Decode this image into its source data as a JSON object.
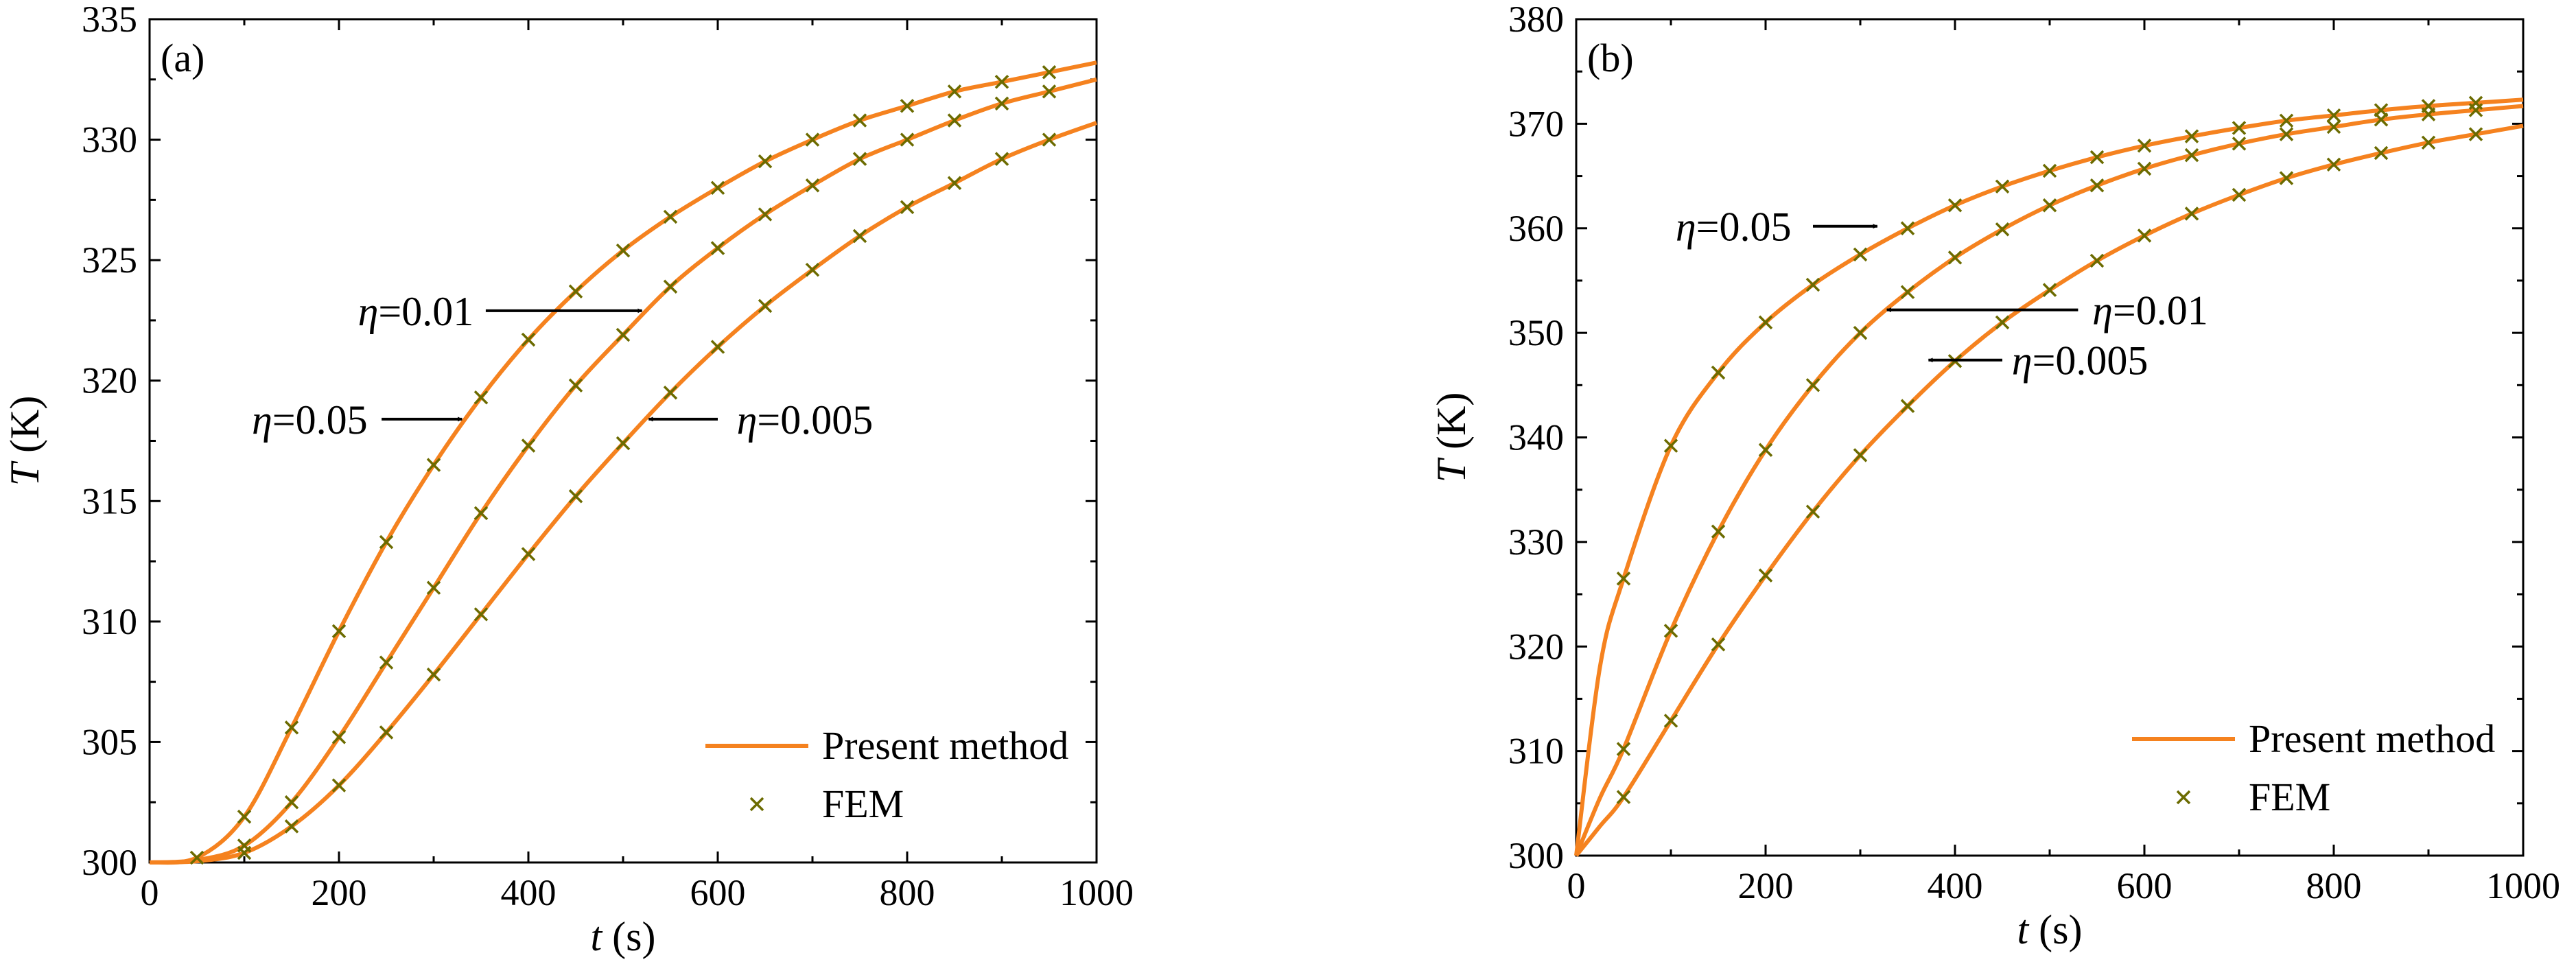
{
  "figure": {
    "legend": {
      "line_label": "Present method",
      "marker_label": "FEM",
      "marker_symbol": "×"
    },
    "colors": {
      "line": "#f5821f",
      "marker": "#6b6b00",
      "axis": "#000000"
    }
  },
  "chart_data": [
    {
      "type": "line",
      "panel_label": "(a)",
      "xlabel": "t",
      "xlabel_unit": "(s)",
      "ylabel": "T",
      "ylabel_unit": "(K)",
      "xlim": [
        0,
        1000
      ],
      "ylim": [
        300,
        335
      ],
      "xticks": [
        0,
        200,
        400,
        600,
        800,
        1000
      ],
      "yticks": [
        300,
        305,
        310,
        315,
        320,
        325,
        330,
        335
      ],
      "legend_position": "bottom-right",
      "series": [
        {
          "name": "η=0.05",
          "x": [
            0,
            50,
            100,
            150,
            200,
            250,
            300,
            350,
            400,
            450,
            500,
            550,
            600,
            650,
            700,
            750,
            800,
            850,
            900,
            950,
            1000
          ],
          "values": [
            300,
            300.2,
            301.9,
            305.6,
            309.6,
            313.3,
            316.5,
            319.3,
            321.7,
            323.7,
            325.4,
            326.8,
            328.0,
            329.1,
            330.0,
            330.8,
            331.4,
            332.0,
            332.4,
            332.8,
            333.2
          ],
          "fem_x": [
            50,
            100,
            150,
            200,
            250,
            300,
            350,
            400,
            450,
            500,
            550,
            600,
            650,
            700,
            750,
            800,
            850,
            900,
            950
          ],
          "fem_values": [
            300.2,
            301.9,
            305.6,
            309.6,
            313.3,
            316.5,
            319.3,
            321.7,
            323.7,
            325.4,
            326.8,
            328.0,
            329.1,
            330.0,
            330.8,
            331.4,
            332.0,
            332.4,
            332.8
          ]
        },
        {
          "name": "η=0.01",
          "x": [
            0,
            50,
            100,
            150,
            200,
            250,
            300,
            350,
            400,
            450,
            500,
            550,
            600,
            650,
            700,
            750,
            800,
            850,
            900,
            950,
            1000
          ],
          "values": [
            300,
            300.1,
            300.7,
            302.5,
            305.2,
            308.3,
            311.4,
            314.5,
            317.3,
            319.8,
            321.9,
            323.9,
            325.5,
            326.9,
            328.1,
            329.2,
            330.0,
            330.8,
            331.5,
            332.0,
            332.5
          ],
          "fem_x": [
            100,
            150,
            200,
            250,
            300,
            350,
            400,
            450,
            500,
            550,
            600,
            650,
            700,
            750,
            800,
            850,
            900,
            950
          ],
          "fem_values": [
            300.7,
            302.5,
            305.2,
            308.3,
            311.4,
            314.5,
            317.3,
            319.8,
            321.9,
            323.9,
            325.5,
            326.9,
            328.1,
            329.2,
            330.0,
            330.8,
            331.5,
            332.0
          ]
        },
        {
          "name": "η=0.005",
          "x": [
            0,
            50,
            100,
            150,
            200,
            250,
            300,
            350,
            400,
            450,
            500,
            550,
            600,
            650,
            700,
            750,
            800,
            850,
            900,
            950,
            1000
          ],
          "values": [
            300,
            300.05,
            300.4,
            301.5,
            303.2,
            305.4,
            307.8,
            310.3,
            312.8,
            315.2,
            317.4,
            319.5,
            321.4,
            323.1,
            324.6,
            326.0,
            327.2,
            328.2,
            329.2,
            330.0,
            330.7
          ],
          "fem_x": [
            100,
            150,
            200,
            250,
            300,
            350,
            400,
            450,
            500,
            550,
            600,
            650,
            700,
            750,
            800,
            850,
            900,
            950
          ],
          "fem_values": [
            300.4,
            301.5,
            303.2,
            305.4,
            307.8,
            310.3,
            312.8,
            315.2,
            317.4,
            319.5,
            321.4,
            323.1,
            324.6,
            326.0,
            327.2,
            328.2,
            329.2,
            330.0
          ]
        }
      ],
      "annotations": [
        {
          "series": "η=0.01",
          "eta": "η",
          "value": "=0.01",
          "text_at": [
            220,
            322.9
          ],
          "arrow_from": [
            355,
            322.9
          ],
          "arrow_to": [
            520,
            322.9
          ]
        },
        {
          "series": "η=0.05",
          "eta": "η",
          "value": "=0.05",
          "text_at": [
            108,
            318.4
          ],
          "arrow_from": [
            245,
            318.4
          ],
          "arrow_to": [
            330,
            318.4
          ]
        },
        {
          "series": "η=0.005",
          "eta": "η",
          "value": "=0.005",
          "text_at": [
            620,
            318.4
          ],
          "arrow_from": [
            600,
            318.4
          ],
          "arrow_to": [
            527,
            318.4
          ]
        }
      ]
    },
    {
      "type": "line",
      "panel_label": "(b)",
      "xlabel": "t",
      "xlabel_unit": "(s)",
      "ylabel": "T",
      "ylabel_unit": "(K)",
      "xlim": [
        0,
        1000
      ],
      "ylim": [
        300,
        380
      ],
      "xticks": [
        0,
        200,
        400,
        600,
        800,
        1000
      ],
      "yticks": [
        300,
        310,
        320,
        330,
        340,
        350,
        360,
        370,
        380
      ],
      "legend_position": "bottom-right",
      "series": [
        {
          "name": "η=0.05",
          "x": [
            0,
            25,
            50,
            100,
            150,
            200,
            250,
            300,
            350,
            400,
            450,
            500,
            550,
            600,
            650,
            700,
            750,
            800,
            850,
            900,
            950,
            1000
          ],
          "values": [
            300,
            318,
            326.5,
            339.2,
            346.2,
            351.0,
            354.6,
            357.5,
            360.0,
            362.2,
            364.0,
            365.5,
            366.8,
            367.9,
            368.8,
            369.6,
            370.3,
            370.8,
            371.3,
            371.7,
            372.0,
            372.3
          ],
          "fem_x": [
            50,
            100,
            150,
            200,
            250,
            300,
            350,
            400,
            450,
            500,
            550,
            600,
            650,
            700,
            750,
            800,
            850,
            900,
            950
          ],
          "fem_values": [
            326.5,
            339.2,
            346.2,
            351.0,
            354.6,
            357.5,
            360.0,
            362.2,
            364.0,
            365.5,
            366.8,
            367.9,
            368.8,
            369.6,
            370.3,
            370.8,
            371.3,
            371.7,
            372.0
          ]
        },
        {
          "name": "η=0.01",
          "x": [
            0,
            25,
            50,
            100,
            150,
            200,
            250,
            300,
            350,
            400,
            450,
            500,
            550,
            600,
            650,
            700,
            750,
            800,
            850,
            900,
            950,
            1000
          ],
          "values": [
            300,
            305.5,
            310.2,
            321.5,
            331.0,
            338.8,
            345.0,
            350.0,
            353.9,
            357.2,
            359.9,
            362.2,
            364.1,
            365.7,
            367.0,
            368.1,
            369.0,
            369.7,
            370.4,
            370.9,
            371.3,
            371.7
          ],
          "fem_x": [
            50,
            100,
            150,
            200,
            250,
            300,
            350,
            400,
            450,
            500,
            550,
            600,
            650,
            700,
            750,
            800,
            850,
            900,
            950
          ],
          "fem_values": [
            310.2,
            321.5,
            331.0,
            338.8,
            345.0,
            350.0,
            353.9,
            357.2,
            359.9,
            362.2,
            364.1,
            365.7,
            367.0,
            368.1,
            369.0,
            369.7,
            370.4,
            370.9,
            371.3
          ]
        },
        {
          "name": "η=0.005",
          "x": [
            0,
            25,
            50,
            100,
            150,
            200,
            250,
            300,
            350,
            400,
            450,
            500,
            550,
            600,
            650,
            700,
            750,
            800,
            850,
            900,
            950,
            1000
          ],
          "values": [
            300,
            302.8,
            305.6,
            312.9,
            320.2,
            326.8,
            332.9,
            338.3,
            343.0,
            347.3,
            351.0,
            354.1,
            356.9,
            359.3,
            361.4,
            363.2,
            364.8,
            366.1,
            367.2,
            368.2,
            369.0,
            369.8
          ],
          "fem_x": [
            50,
            100,
            150,
            200,
            250,
            300,
            350,
            400,
            450,
            500,
            550,
            600,
            650,
            700,
            750,
            800,
            850,
            900,
            950
          ],
          "fem_values": [
            305.6,
            312.9,
            320.2,
            326.8,
            332.9,
            338.3,
            343.0,
            347.3,
            351.0,
            354.1,
            356.9,
            359.3,
            361.4,
            363.2,
            364.8,
            366.1,
            367.2,
            368.2,
            369.0
          ]
        }
      ],
      "annotations": [
        {
          "series": "η=0.05",
          "eta": "η",
          "value": "=0.05",
          "text_at": [
            105,
            360.2
          ],
          "arrow_from": [
            250,
            360.2
          ],
          "arrow_to": [
            318,
            360.2
          ]
        },
        {
          "series": "η=0.01",
          "eta": "η",
          "value": "=0.01",
          "text_at": [
            545,
            352.2
          ],
          "arrow_from": [
            530,
            352.2
          ],
          "arrow_to": [
            328,
            352.2
          ]
        },
        {
          "series": "η=0.005",
          "eta": "η",
          "value": "=0.005",
          "text_at": [
            460,
            347.4
          ],
          "arrow_from": [
            450,
            347.4
          ],
          "arrow_to": [
            372,
            347.4
          ]
        }
      ]
    }
  ]
}
